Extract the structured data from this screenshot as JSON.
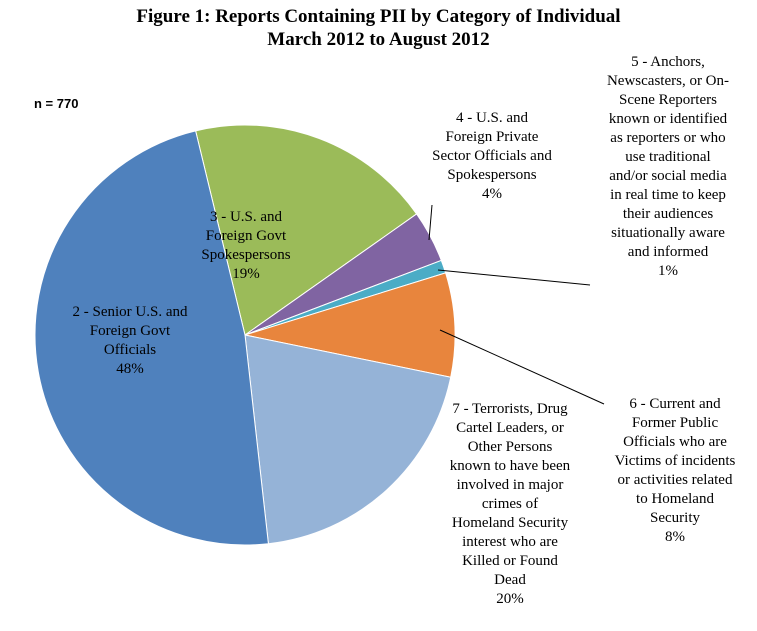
{
  "chart_data": {
    "type": "pie",
    "title": "Figure 1: Reports Containing PII by Category of Individual",
    "subtitle": "March 2012 to August 2012",
    "annotation": "n = 770",
    "slices": [
      {
        "name": "3 - U.S. and Foreign Govt Spokespersons",
        "lines": [
          "3 - U.S. and",
          "Foreign Govt",
          "Spokespersons",
          "19%"
        ],
        "value": 19,
        "color": "#9bbb59"
      },
      {
        "name": "4 - U.S. and Foreign Private Sector Officials and Spokespersons",
        "lines": [
          "4 - U.S. and",
          "Foreign Private",
          "Sector Officials and",
          "Spokespersons",
          "4%"
        ],
        "value": 4,
        "color": "#8064a2"
      },
      {
        "name": "5 - Anchors, Newscasters, or On-Scene Reporters known or identified as reporters or who use traditional and/or social media in real time to keep their audiences situationally aware and informed",
        "lines": [
          "5 - Anchors,",
          "Newscasters, or On-",
          "Scene Reporters",
          "known or identified",
          "as reporters or who",
          "use traditional",
          "and/or social media",
          "in real time to keep",
          "their audiences",
          "situationally aware",
          "and informed",
          "1%"
        ],
        "value": 1,
        "color": "#4bacc6"
      },
      {
        "name": "6 - Current and Former Public Officials who are Victims of incidents or activities related to Homeland Security",
        "lines": [
          "6 - Current and",
          "Former Public",
          "Officials who are",
          "Victims of incidents",
          "or activities related",
          "to Homeland",
          "Security",
          "8%"
        ],
        "value": 8,
        "color": "#e8853d"
      },
      {
        "name": "7 - Terrorists, Drug Cartel Leaders, or Other Persons known to have been involved in major crimes of Homeland Security interest who are Killed or Found Dead",
        "lines": [
          "7 - Terrorists, Drug",
          "Cartel Leaders, or",
          "Other Persons",
          "known to have been",
          "involved in major",
          "crimes of",
          "Homeland Security",
          "interest who are",
          "Killed or Found",
          "Dead",
          "20%"
        ],
        "value": 20,
        "color": "#95b3d7"
      },
      {
        "name": "2 - Senior U.S. and Foreign Govt Officials",
        "lines": [
          "2 - Senior U.S. and",
          "Foreign Govt",
          "Officials",
          "48%"
        ],
        "value": 48,
        "color": "#4f81bd"
      }
    ]
  }
}
